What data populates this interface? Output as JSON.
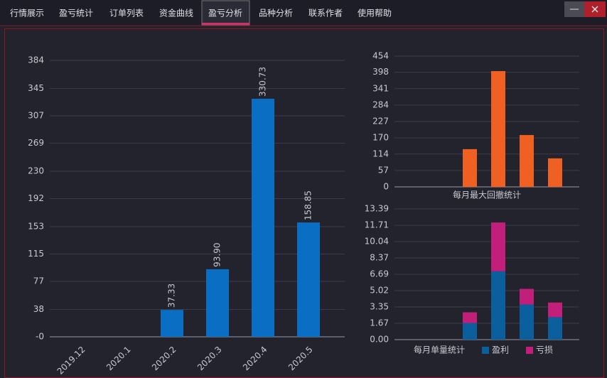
{
  "tabs": [
    "行情展示",
    "盈亏统计",
    "订单列表",
    "资金曲线",
    "盈亏分析",
    "品种分析",
    "联系作者",
    "使用帮助"
  ],
  "active_tab": 4,
  "chart_data": [
    {
      "type": "bar",
      "categories": [
        "2019.12",
        "2020.1",
        "2020.2",
        "2020.3",
        "2020.4",
        "2020.5"
      ],
      "values": [
        0,
        0,
        37.33,
        93.9,
        330.73,
        158.85
      ],
      "value_labels": [
        null,
        null,
        "37.33",
        "93.90",
        "330.73",
        "158.85"
      ],
      "color": "#0a6fc2",
      "ylim": [
        0,
        384
      ],
      "yticks": [
        {
          "value": 0,
          "label": "-0"
        },
        38,
        77,
        115,
        153,
        192,
        230,
        269,
        307,
        345,
        384
      ],
      "grid": true
    },
    {
      "type": "bar",
      "title": "每月最大回撤统计",
      "categories": [
        null,
        null,
        null,
        null,
        null,
        null
      ],
      "values": [
        0,
        0,
        131,
        402,
        180,
        99
      ],
      "color": "#f06023",
      "ylim": [
        0,
        454
      ],
      "yticks": [
        0,
        57,
        114,
        170,
        227,
        284,
        341,
        398,
        454
      ],
      "grid": true
    },
    {
      "type": "bar",
      "title": "每月单量统计",
      "categories": [
        null,
        null,
        null,
        null,
        null,
        null
      ],
      "series": [
        {
          "name": "盈利",
          "color": "#0b5f9c",
          "values": [
            0,
            0,
            1.7,
            7,
            3.6,
            2.3
          ]
        },
        {
          "name": "亏损",
          "color": "#c21f7a",
          "values": [
            0,
            0,
            1.1,
            5,
            1.6,
            1.5
          ]
        }
      ],
      "ylim": [
        0,
        13.39
      ],
      "yticks": [
        {
          "value": 0,
          "label": "0.00"
        },
        1.67,
        3.35,
        5.02,
        6.69,
        8.37,
        10.04,
        11.71,
        13.39
      ],
      "grid": true
    }
  ]
}
